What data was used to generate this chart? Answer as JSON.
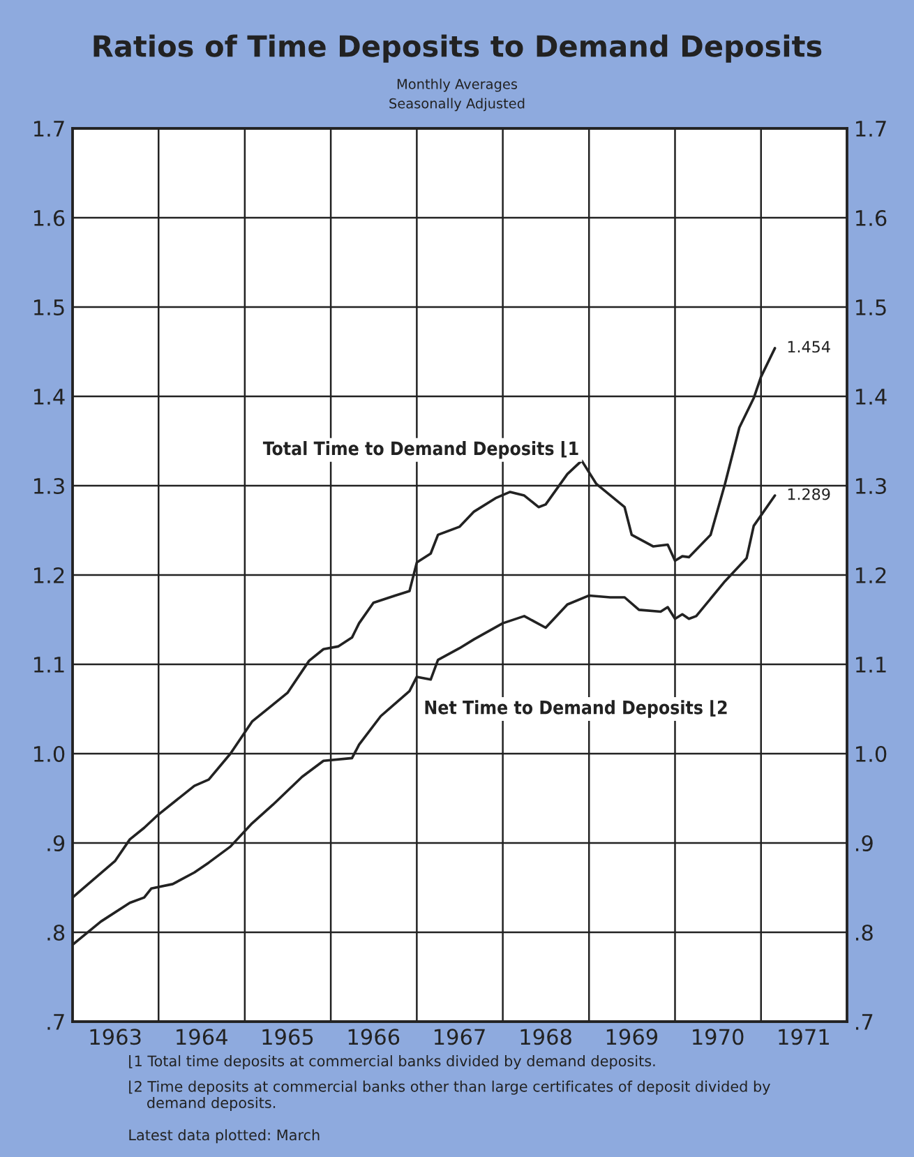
{
  "chart_data": {
    "type": "line",
    "title": "Ratios of Time Deposits to Demand Deposits",
    "subtitle": "Monthly Averages\nSeasonally Adjusted",
    "series": [
      {
        "name": "Total Time to Demand Deposits ⌊1",
        "color": "#222222",
        "x": [
          "1963-01",
          "1963-07",
          "1963-09",
          "1963-11",
          "1964-01",
          "1964-06",
          "1964-08",
          "1964-11",
          "1965-02",
          "1965-07",
          "1965-10",
          "1965-12",
          "1966-02",
          "1966-04",
          "1966-05",
          "1966-07",
          "1966-10",
          "1966-12",
          "1967-01",
          "1967-03",
          "1967-04",
          "1967-07",
          "1967-09",
          "1967-12",
          "1968-02",
          "1968-04",
          "1968-06",
          "1968-07",
          "1968-10",
          "1968-12",
          "1969-02",
          "1969-06",
          "1969-07",
          "1969-10",
          "1969-12",
          "1970-01",
          "1970-02",
          "1970-03",
          "1970-06",
          "1970-08",
          "1970-10",
          "1970-12",
          "1971-01",
          "1971-03"
        ],
        "values": [
          0.839,
          0.88,
          0.904,
          0.917,
          0.932,
          0.964,
          0.971,
          1.0,
          1.036,
          1.068,
          1.104,
          1.117,
          1.12,
          1.13,
          1.146,
          1.169,
          1.177,
          1.182,
          1.214,
          1.224,
          1.245,
          1.254,
          1.271,
          1.286,
          1.293,
          1.289,
          1.276,
          1.279,
          1.313,
          1.328,
          1.302,
          1.276,
          1.245,
          1.232,
          1.234,
          1.216,
          1.221,
          1.22,
          1.245,
          1.302,
          1.365,
          1.398,
          1.422,
          1.454
        ],
        "value_labels": [
          null,
          null,
          null,
          null,
          null,
          null,
          null,
          null,
          null,
          null,
          null,
          null,
          null,
          null,
          null,
          null,
          null,
          null,
          null,
          null,
          null,
          null,
          null,
          null,
          null,
          null,
          null,
          null,
          null,
          null,
          null,
          null,
          null,
          null,
          null,
          null,
          null,
          null,
          null,
          null,
          null,
          null,
          null,
          "1.454"
        ]
      },
      {
        "name": "Net Time to Demand Deposits ⌊2",
        "color": "#222222",
        "x": [
          "1963-01",
          "1963-05",
          "1963-09",
          "1963-11",
          "1963-12",
          "1964-03",
          "1964-06",
          "1964-08",
          "1964-11",
          "1965-02",
          "1965-05",
          "1965-09",
          "1965-12",
          "1966-04",
          "1966-05",
          "1966-08",
          "1966-12",
          "1967-01",
          "1967-03",
          "1967-04",
          "1967-07",
          "1967-09",
          "1968-01",
          "1968-04",
          "1968-07",
          "1968-10",
          "1969-01",
          "1969-04",
          "1969-06",
          "1969-08",
          "1969-11",
          "1969-12",
          "1970-01",
          "1970-02",
          "1970-03",
          "1970-04",
          "1970-08",
          "1970-11",
          "1970-12",
          "1971-03"
        ],
        "values": [
          0.786,
          0.812,
          0.833,
          0.839,
          0.849,
          0.854,
          0.867,
          0.878,
          0.896,
          0.922,
          0.943,
          0.974,
          0.992,
          0.995,
          1.01,
          1.042,
          1.07,
          1.086,
          1.083,
          1.105,
          1.118,
          1.128,
          1.146,
          1.154,
          1.141,
          1.167,
          1.177,
          1.175,
          1.175,
          1.161,
          1.159,
          1.164,
          1.151,
          1.156,
          1.151,
          1.154,
          1.193,
          1.219,
          1.255,
          1.289
        ],
        "value_labels": [
          null,
          null,
          null,
          null,
          null,
          null,
          null,
          null,
          null,
          null,
          null,
          null,
          null,
          null,
          null,
          null,
          null,
          null,
          null,
          null,
          null,
          null,
          null,
          null,
          null,
          null,
          null,
          null,
          null,
          null,
          null,
          null,
          null,
          null,
          null,
          null,
          null,
          null,
          null,
          "1.289"
        ]
      }
    ],
    "xlim": [
      "1963-01-01",
      "1972-01-01"
    ],
    "xticks": [
      {
        "value": "1963-01-01",
        "label": null
      },
      {
        "value": "1963-07-01",
        "label": "1963"
      },
      {
        "value": "1964-01-01",
        "label": null
      },
      {
        "value": "1964-07-01",
        "label": "1964"
      },
      {
        "value": "1965-01-01",
        "label": null
      },
      {
        "value": "1965-07-01",
        "label": "1965"
      },
      {
        "value": "1966-01-01",
        "label": null
      },
      {
        "value": "1966-07-01",
        "label": "1966"
      },
      {
        "value": "1967-01-01",
        "label": null
      },
      {
        "value": "1967-07-01",
        "label": "1967"
      },
      {
        "value": "1968-01-01",
        "label": null
      },
      {
        "value": "1968-07-01",
        "label": "1968"
      },
      {
        "value": "1969-01-01",
        "label": null
      },
      {
        "value": "1969-07-01",
        "label": "1969"
      },
      {
        "value": "1970-01-01",
        "label": null
      },
      {
        "value": "1970-07-01",
        "label": "1970"
      },
      {
        "value": "1971-01-01",
        "label": null
      },
      {
        "value": "1971-07-01",
        "label": "1971"
      },
      {
        "value": "1972-01-01",
        "label": null
      }
    ],
    "ylim": [
      0.7,
      1.7
    ],
    "yticks": [
      {
        "value": 0.7,
        "label": ".7"
      },
      {
        "value": 0.8,
        "label": ".8"
      },
      {
        "value": 0.9,
        "label": ".9"
      },
      {
        "value": 1.0,
        "label": "1.0"
      },
      1.1,
      1.2,
      1.3,
      1.4,
      1.5,
      1.6,
      1.7
    ],
    "y2lim": [
      0.7,
      1.7
    ],
    "y2ticks": [
      {
        "value": 0.7,
        "label": ".7"
      },
      {
        "value": 0.8,
        "label": ".8"
      },
      {
        "value": 0.9,
        "label": ".9"
      },
      {
        "value": 1.0,
        "label": "1.0"
      },
      1.1,
      1.2,
      1.3,
      1.4,
      1.5,
      1.6,
      1.7
    ],
    "grid": true,
    "legend": false,
    "marker": "none",
    "line_style": "solid",
    "annotations": [
      "⌊1 Total time deposits at commercial banks divided by demand deposits.",
      "⌊2 Time deposits at commercial banks other than large certificates of deposit divided by\n    demand deposits.",
      "Latest data plotted: March"
    ]
  }
}
